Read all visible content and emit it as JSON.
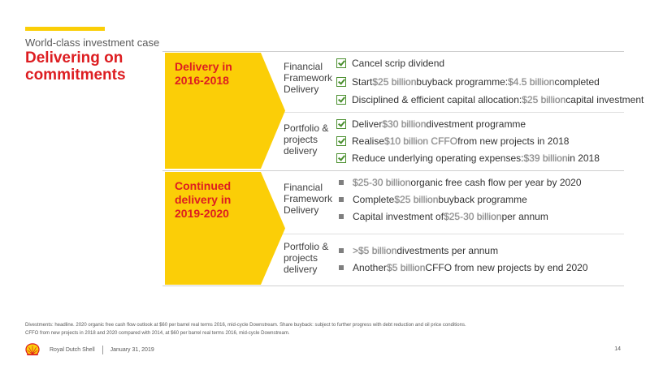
{
  "header": {
    "subtitle": "World-class investment case",
    "title": "Delivering on commitments"
  },
  "sections": [
    {
      "label": "Delivery in 2016-2018",
      "groups": [
        {
          "category": "Financial Framework Delivery",
          "items": [
            {
              "marker": "check",
              "pre": "Cancel scrip dividend",
              "hl1": "",
              "mid": "",
              "hl2": "",
              "post": ""
            },
            {
              "marker": "check",
              "pre": "Start ",
              "hl1": "$25 billion",
              "mid": " buyback programme: ",
              "hl2": "$4.5 billion",
              "post": " completed"
            },
            {
              "marker": "check",
              "pre": "Disciplined & efficient capital allocation: ",
              "hl1": "$25 billion",
              "mid": " capital investment",
              "hl2": "",
              "post": ""
            }
          ]
        },
        {
          "category": "Portfolio & projects delivery",
          "items": [
            {
              "marker": "check",
              "pre": "Deliver ",
              "hl1": "$30 billion",
              "mid": " divestment programme",
              "hl2": "",
              "post": ""
            },
            {
              "marker": "check",
              "pre": "Realise ",
              "hl1": "$10 billion CFFO",
              "mid": " from new projects in 2018",
              "hl2": "",
              "post": ""
            },
            {
              "marker": "check",
              "pre": "Reduce underlying operating expenses: ",
              "hl1": "$39 billion",
              "mid": " in 2018",
              "hl2": "",
              "post": ""
            }
          ]
        }
      ]
    },
    {
      "label": "Continued delivery in 2019-2020",
      "groups": [
        {
          "category": "Financial Framework Delivery",
          "items": [
            {
              "marker": "square",
              "pre": "",
              "hl1": "$25-30 billion",
              "mid": " organic free cash flow per year by 2020",
              "hl2": "",
              "post": ""
            },
            {
              "marker": "square",
              "pre": "Complete ",
              "hl1": "$25 billion",
              "mid": " buyback programme",
              "hl2": "",
              "post": ""
            },
            {
              "marker": "square",
              "pre": "Capital investment of ",
              "hl1": "$25-30 billion",
              "mid": " per annum",
              "hl2": "",
              "post": ""
            }
          ]
        },
        {
          "category": "Portfolio & projects delivery",
          "items": [
            {
              "marker": "square",
              "pre": "",
              "hl1": ">$5 billion",
              "mid": " divestments per annum",
              "hl2": "",
              "post": ""
            },
            {
              "marker": "square",
              "pre": "Another ",
              "hl1": "$5 billion",
              "mid": " CFFO from new projects by end 2020",
              "hl2": "",
              "post": ""
            }
          ]
        }
      ]
    }
  ],
  "footnotes": [
    "Divestments: headline. 2020 organic free cash flow outlook at $60 per barrel real terms 2016, mid-cycle Downstream. Share buyback: subject to further progress with debt reduction and oil price conditions.",
    "CFFO from new projects in 2018 and 2020 compared with 2014, at $60 per barrel real terms 2016, mid-cycle Downstream."
  ],
  "footer": {
    "company": "Royal Dutch Shell",
    "date": "January 31, 2019",
    "page": "14"
  },
  "colors": {
    "accent_yellow": "#FBCE07",
    "shell_red": "#DD1D21",
    "check_green": "#4a8f2e"
  },
  "icons": {
    "logo": "shell-pecten-logo",
    "done_marker": "checkbox-check-icon",
    "planned_marker": "square-bullet-icon"
  }
}
